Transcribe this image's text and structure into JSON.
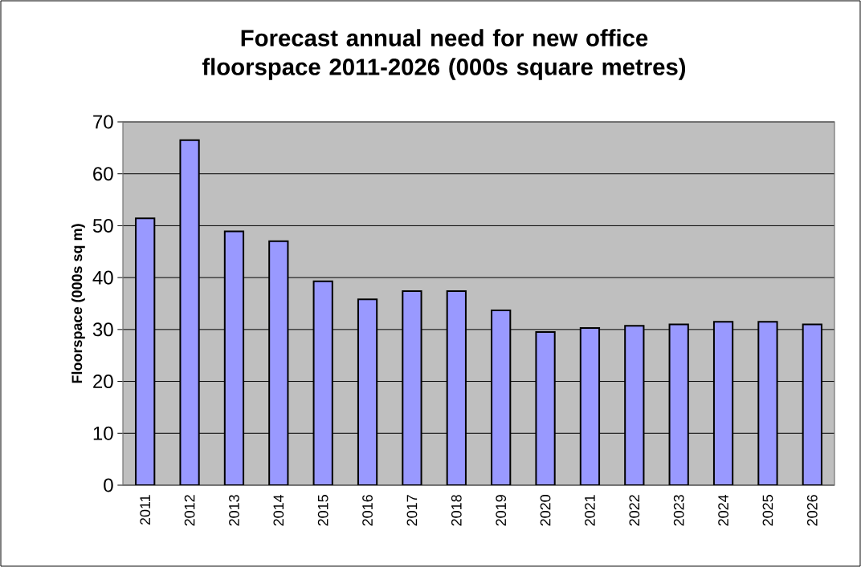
{
  "chart_data": {
    "type": "bar",
    "title": "Forecast annual need for new office floorspace 2011-2026 (000s square metres)",
    "ylabel": "Floorspace (000s sq m)",
    "categories": [
      "2011",
      "2012",
      "2013",
      "2014",
      "2015",
      "2016",
      "2017",
      "2018",
      "2019",
      "2020",
      "2021",
      "2022",
      "2023",
      "2024",
      "2025",
      "2026"
    ],
    "values": [
      51.4,
      66.5,
      48.9,
      47.0,
      39.3,
      35.8,
      37.4,
      37.4,
      33.7,
      29.5,
      30.3,
      30.7,
      31.0,
      31.5,
      31.5,
      31.0
    ],
    "color": "#9999ff",
    "ylim": [
      0,
      70
    ],
    "yticks": [
      0,
      10,
      20,
      30,
      40,
      50,
      60,
      70
    ],
    "grid": "y"
  }
}
